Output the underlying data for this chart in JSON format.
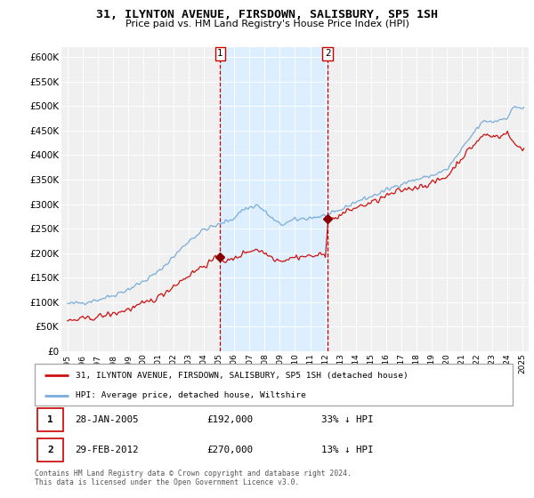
{
  "title": "31, ILYNTON AVENUE, FIRSDOWN, SALISBURY, SP5 1SH",
  "subtitle": "Price paid vs. HM Land Registry's House Price Index (HPI)",
  "legend_line1": "31, ILYNTON AVENUE, FIRSDOWN, SALISBURY, SP5 1SH (detached house)",
  "legend_line2": "HPI: Average price, detached house, Wiltshire",
  "table_rows": [
    {
      "label": "1",
      "date": "28-JAN-2005",
      "price": "£192,000",
      "info": "33% ↓ HPI"
    },
    {
      "label": "2",
      "date": "29-FEB-2012",
      "price": "£270,000",
      "info": "13% ↓ HPI"
    }
  ],
  "footnote": "Contains HM Land Registry data © Crown copyright and database right 2024.\nThis data is licensed under the Open Government Licence v3.0.",
  "sale1_year": 2005.07,
  "sale1_price": 192000,
  "sale2_year": 2012.16,
  "sale2_price": 270000,
  "vline_color": "#cc0000",
  "sale_marker_color": "#880000",
  "hpi_color": "#7aadda",
  "price_color": "#cc1111",
  "bg_vline_fill": "#ddeeff",
  "ylim": [
    0,
    620000
  ],
  "yticks": [
    0,
    50000,
    100000,
    150000,
    200000,
    250000,
    300000,
    350000,
    400000,
    450000,
    500000,
    550000,
    600000
  ],
  "background_color": "#ffffff",
  "plot_bg_color": "#f0f0f0"
}
